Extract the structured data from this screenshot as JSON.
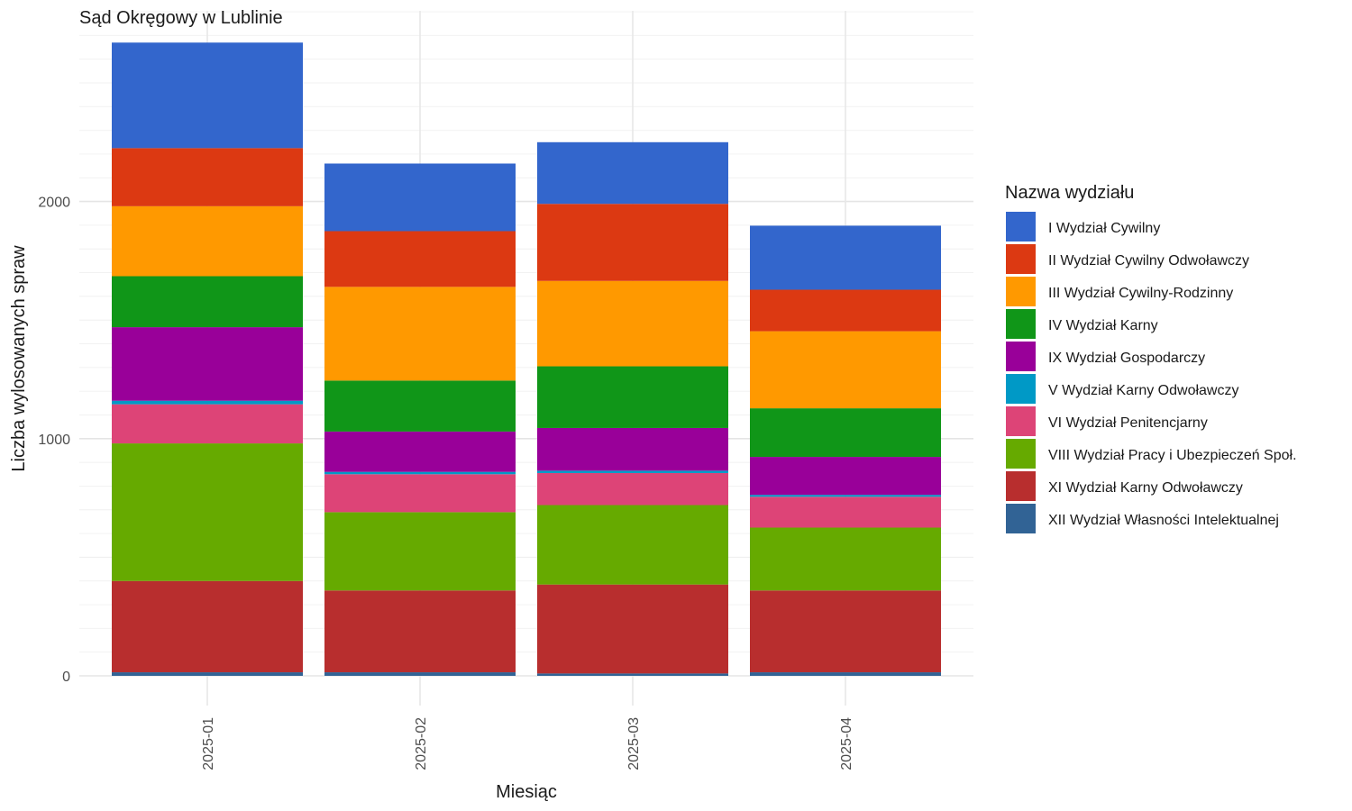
{
  "chart_data": {
    "type": "bar",
    "stacked": true,
    "title": "Sąd Okręgowy w Lublinie",
    "xlabel": "Miesiąc",
    "ylabel": "Liczba wylosowanych spraw",
    "categories": [
      "2025-01",
      "2025-02",
      "2025-03",
      "2025-04"
    ],
    "ylim": [
      0,
      2800
    ],
    "yticks": [
      0,
      1000,
      2000
    ],
    "grid": true,
    "legend_position": "right",
    "legend_title": "Nazwa wydziału",
    "series": [
      {
        "name": "I Wydział Cywilny",
        "color": "#3366CC",
        "values": [
          445,
          285,
          260,
          270
        ]
      },
      {
        "name": "II Wydział Cywilny Odwoławczy",
        "color": "#DC3912",
        "values": [
          245,
          235,
          325,
          175
        ]
      },
      {
        "name": "III Wydział Cywilny-Rodzinny",
        "color": "#FF9900",
        "values": [
          295,
          395,
          360,
          325
        ]
      },
      {
        "name": "IV Wydział Karny",
        "color": "#109618",
        "values": [
          215,
          215,
          260,
          205
        ]
      },
      {
        "name": "IX Wydział Gospodarczy",
        "color": "#990099",
        "values": [
          310,
          170,
          180,
          160
        ]
      },
      {
        "name": "V Wydział Karny Odwoławczy",
        "color": "#0099C6",
        "values": [
          15,
          10,
          10,
          8
        ]
      },
      {
        "name": "VI Wydział Penitencjarny",
        "color": "#DD4477",
        "values": [
          165,
          160,
          135,
          130
        ]
      },
      {
        "name": "VIII Wydział Pracy i Ubezpieczeń Społ.",
        "color": "#66AA00",
        "values": [
          580,
          330,
          335,
          265
        ]
      },
      {
        "name": "XI Wydział Karny Odwoławczy",
        "color": "#B82E2E",
        "values": [
          385,
          345,
          375,
          345
        ]
      },
      {
        "name": "XII Wydział Własności Intelektualnej",
        "color": "#316395",
        "values": [
          15,
          15,
          10,
          15
        ]
      }
    ]
  }
}
